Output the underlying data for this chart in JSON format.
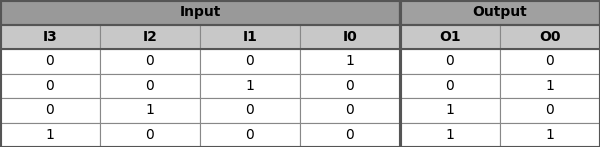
{
  "title_row": [
    "Input",
    "Output"
  ],
  "title_spans": [
    4,
    2
  ],
  "header_row": [
    "I3",
    "I2",
    "I1",
    "I0",
    "O1",
    "O0"
  ],
  "data_rows": [
    [
      "0",
      "0",
      "0",
      "1",
      "0",
      "0"
    ],
    [
      "0",
      "0",
      "1",
      "0",
      "0",
      "1"
    ],
    [
      "0",
      "1",
      "0",
      "0",
      "1",
      "0"
    ],
    [
      "1",
      "0",
      "0",
      "0",
      "1",
      "1"
    ]
  ],
  "num_cols": 6,
  "title_bg_input": "#999999",
  "title_bg_output": "#a0a0a0",
  "header_bg_input": "#c8c8c8",
  "header_bg_output": "#c8c8c8",
  "row_bg": "#ffffff",
  "border_color": "#888888",
  "thick_border_color": "#555555",
  "text_color": "#000000",
  "title_fontsize": 10,
  "header_fontsize": 10,
  "data_fontsize": 10,
  "fig_width": 6.0,
  "fig_height": 1.47,
  "dpi": 100
}
